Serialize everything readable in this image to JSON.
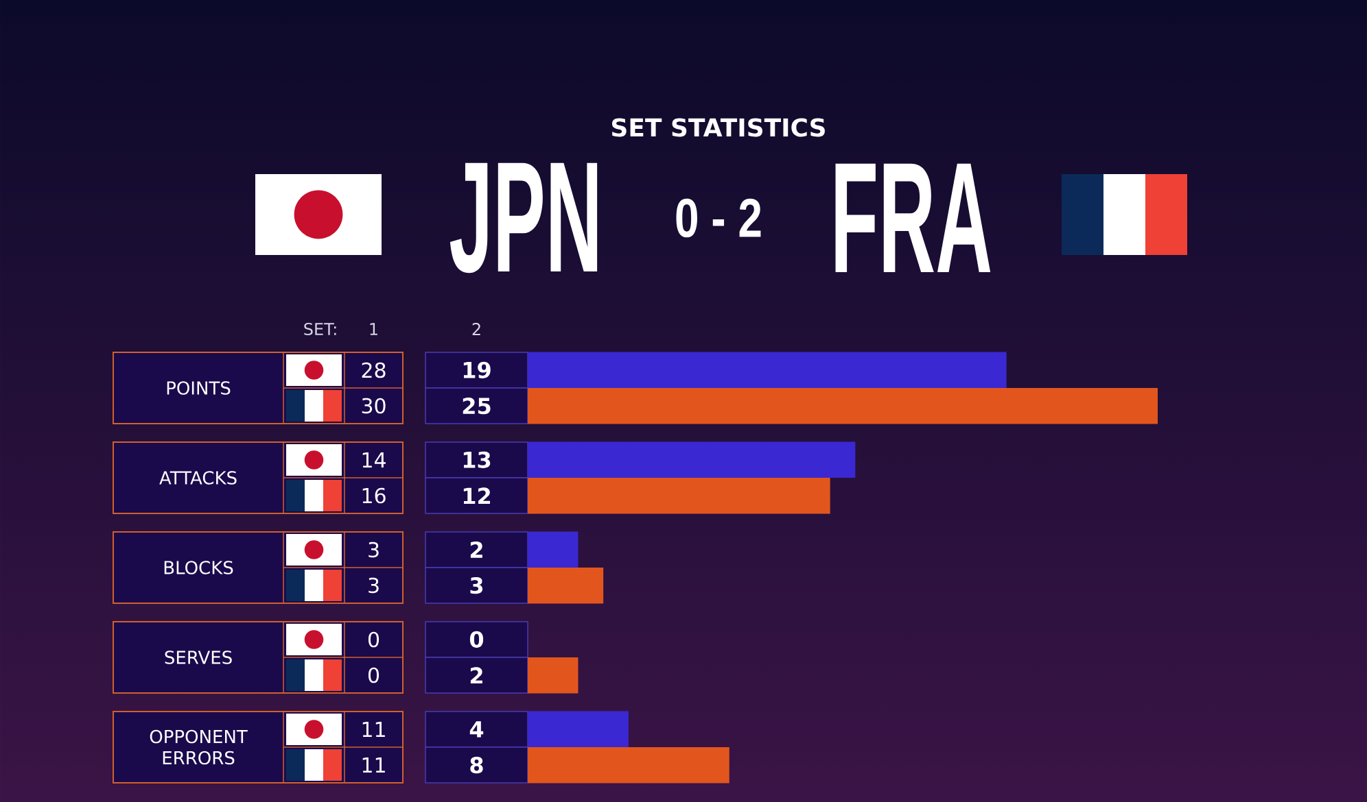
{
  "chart_data": {
    "type": "bar",
    "orientation": "horizontal",
    "title": "SET STATISTICS",
    "categories": [
      "POINTS",
      "ATTACKS",
      "BLOCKS",
      "SERVES",
      "OPPONENT ERRORS"
    ],
    "series": [
      {
        "color": "#3a28d2",
        "values": [
          19,
          13,
          2,
          0,
          4
        ]
      },
      {
        "color": "#e2561e",
        "values": [
          25,
          12,
          3,
          2,
          8
        ]
      }
    ],
    "data_labels": true,
    "annotations": [
      "JPN",
      "0 - 2",
      "FRA",
      "SET:",
      "1",
      "2",
      "28",
      "30",
      "14",
      "16",
      "3",
      "3",
      "0",
      "0",
      "11",
      "11"
    ]
  }
}
